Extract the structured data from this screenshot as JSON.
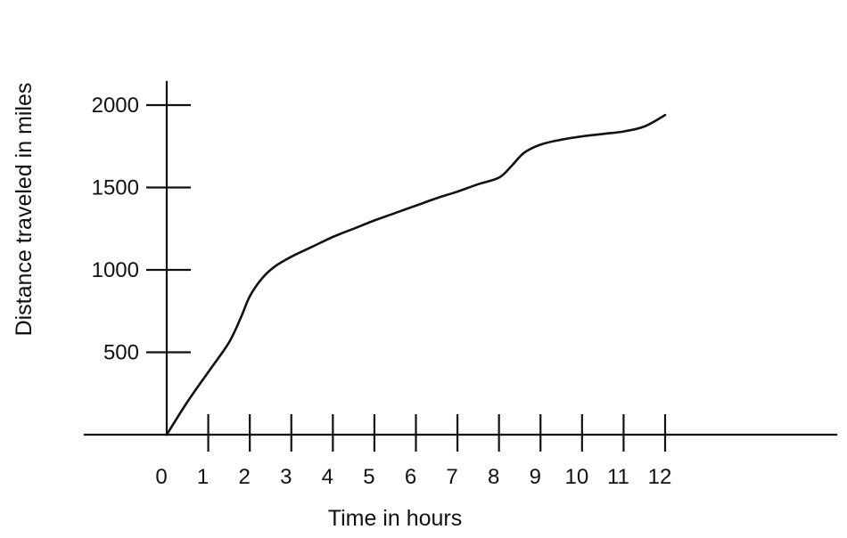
{
  "chart_data": {
    "type": "line",
    "title": "",
    "xlabel": "Time in hours",
    "ylabel": "Distance traveled in miles",
    "xlim": [
      0,
      12
    ],
    "ylim": [
      0,
      2000
    ],
    "x_ticks": [
      0,
      1,
      2,
      3,
      4,
      5,
      6,
      7,
      8,
      9,
      10,
      11,
      12
    ],
    "x_tick_labels": [
      "0",
      "1",
      "2",
      "3",
      "4",
      "5",
      "6",
      "7",
      "8",
      "9",
      "10",
      "11",
      "12"
    ],
    "y_ticks": [
      500,
      1000,
      1500,
      2000
    ],
    "y_tick_labels": [
      "500",
      "1000",
      "1500",
      "2000"
    ],
    "grid": false,
    "legend": "none",
    "line_color": "#111111",
    "series": [
      {
        "x": [
          0,
          0.5,
          1,
          1.5,
          1.8,
          2,
          2.3,
          2.6,
          3,
          3.5,
          4,
          4.5,
          5,
          5.5,
          6,
          6.5,
          7,
          7.5,
          8,
          8.3,
          8.6,
          9,
          9.5,
          10,
          10.5,
          11,
          11.5,
          12
        ],
        "y": [
          0,
          200,
          380,
          560,
          720,
          840,
          950,
          1020,
          1080,
          1140,
          1200,
          1250,
          1300,
          1345,
          1390,
          1435,
          1475,
          1520,
          1560,
          1630,
          1710,
          1760,
          1790,
          1810,
          1825,
          1840,
          1870,
          1940
        ]
      }
    ]
  }
}
